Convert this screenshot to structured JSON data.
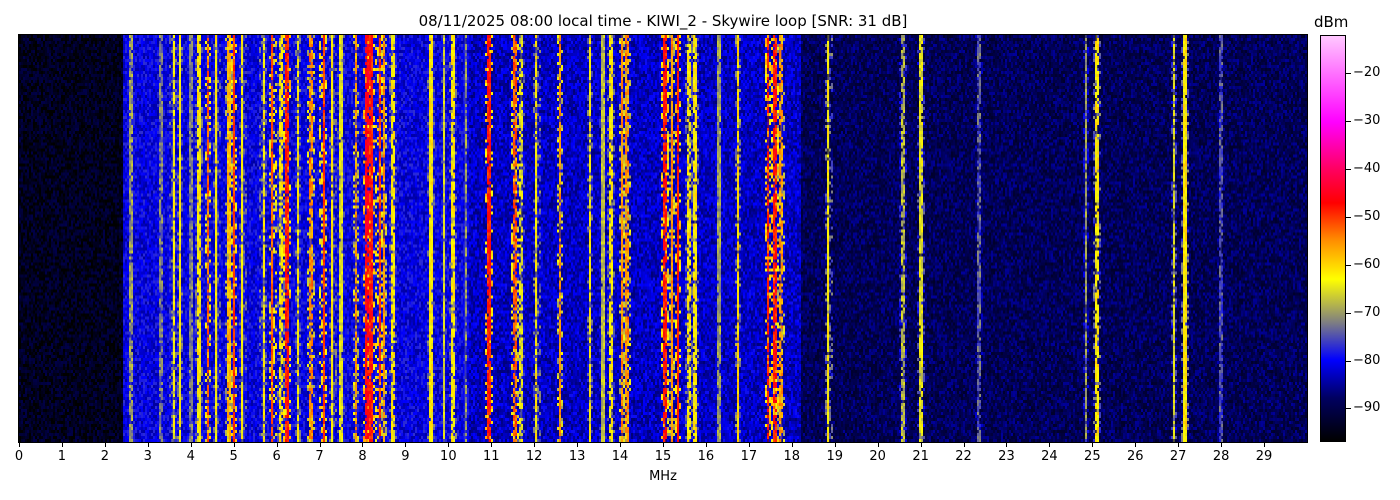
{
  "chart_data": {
    "type": "heatmap",
    "title": "08/11/2025 08:00 local time - KIWI_2 - Skywire loop [SNR: 31 dB]",
    "xlabel": "MHz",
    "xlim": [
      0,
      30
    ],
    "xticks": [
      0,
      1,
      2,
      3,
      4,
      5,
      6,
      7,
      8,
      9,
      10,
      11,
      12,
      13,
      14,
      15,
      16,
      17,
      18,
      19,
      20,
      21,
      22,
      23,
      24,
      25,
      26,
      27,
      28,
      29
    ],
    "colorbar": {
      "label": "dBm",
      "range": [
        -97,
        -12
      ],
      "ticks": [
        -20,
        -30,
        -40,
        -50,
        -60,
        -70,
        -80,
        -90
      ],
      "colormap": [
        {
          "v": -97,
          "color": "#000000"
        },
        {
          "v": -88,
          "color": "#000060"
        },
        {
          "v": -80,
          "color": "#0000ff"
        },
        {
          "v": -72,
          "color": "#808080"
        },
        {
          "v": -63,
          "color": "#ffff00"
        },
        {
          "v": -55,
          "color": "#ff9000"
        },
        {
          "v": -47,
          "color": "#ff0000"
        },
        {
          "v": -40,
          "color": "#ff0060"
        },
        {
          "v": -30,
          "color": "#ff00ff"
        },
        {
          "v": -12,
          "color": "#ffc8ff"
        }
      ]
    },
    "noise_floor": [
      {
        "from_mhz": 0,
        "to_mhz": 2.4,
        "dbm": -94
      },
      {
        "from_mhz": 2.4,
        "to_mhz": 10.5,
        "dbm": -81
      },
      {
        "from_mhz": 10.5,
        "to_mhz": 18.2,
        "dbm": -83
      },
      {
        "from_mhz": 18.2,
        "to_mhz": 30,
        "dbm": -89
      }
    ],
    "signals": [
      {
        "mhz": 2.6,
        "dbm": -70
      },
      {
        "mhz": 3.3,
        "dbm": -72
      },
      {
        "mhz": 3.6,
        "dbm": -63
      },
      {
        "mhz": 3.75,
        "dbm": -62
      },
      {
        "mhz": 4.0,
        "dbm": -72
      },
      {
        "mhz": 4.2,
        "dbm": -62
      },
      {
        "mhz": 4.4,
        "dbm": -52
      },
      {
        "mhz": 4.6,
        "dbm": -62
      },
      {
        "mhz": 4.9,
        "dbm": -58
      },
      {
        "mhz": 5.0,
        "dbm": -50
      },
      {
        "mhz": 5.2,
        "dbm": -63
      },
      {
        "mhz": 5.7,
        "dbm": -62
      },
      {
        "mhz": 5.9,
        "dbm": -52
      },
      {
        "mhz": 6.1,
        "dbm": -62
      },
      {
        "mhz": 6.25,
        "dbm": -48
      },
      {
        "mhz": 6.5,
        "dbm": -62
      },
      {
        "mhz": 6.8,
        "dbm": -55
      },
      {
        "mhz": 7.1,
        "dbm": -50
      },
      {
        "mhz": 7.3,
        "dbm": -62
      },
      {
        "mhz": 7.5,
        "dbm": -65
      },
      {
        "mhz": 7.85,
        "dbm": -55
      },
      {
        "mhz": 8.1,
        "dbm": -46
      },
      {
        "mhz": 8.2,
        "dbm": -48
      },
      {
        "mhz": 8.4,
        "dbm": -50
      },
      {
        "mhz": 8.5,
        "dbm": -55
      },
      {
        "mhz": 8.7,
        "dbm": -62
      },
      {
        "mhz": 9.6,
        "dbm": -62
      },
      {
        "mhz": 9.9,
        "dbm": -66
      },
      {
        "mhz": 10.1,
        "dbm": -62
      },
      {
        "mhz": 10.4,
        "dbm": -70
      },
      {
        "mhz": 10.95,
        "dbm": -48
      },
      {
        "mhz": 11.55,
        "dbm": -52
      },
      {
        "mhz": 11.7,
        "dbm": -65
      },
      {
        "mhz": 12.05,
        "dbm": -62
      },
      {
        "mhz": 12.6,
        "dbm": -55
      },
      {
        "mhz": 13.3,
        "dbm": -62
      },
      {
        "mhz": 13.6,
        "dbm": -68
      },
      {
        "mhz": 13.8,
        "dbm": -62
      },
      {
        "mhz": 14.05,
        "dbm": -55
      },
      {
        "mhz": 14.15,
        "dbm": -55
      },
      {
        "mhz": 15.05,
        "dbm": -48
      },
      {
        "mhz": 15.2,
        "dbm": -55
      },
      {
        "mhz": 15.35,
        "dbm": -48
      },
      {
        "mhz": 15.6,
        "dbm": -62
      },
      {
        "mhz": 15.75,
        "dbm": -62
      },
      {
        "mhz": 16.3,
        "dbm": -70
      },
      {
        "mhz": 16.75,
        "dbm": -60
      },
      {
        "mhz": 17.45,
        "dbm": -48
      },
      {
        "mhz": 17.6,
        "dbm": -48
      },
      {
        "mhz": 17.75,
        "dbm": -56
      },
      {
        "mhz": 18.85,
        "dbm": -62
      },
      {
        "mhz": 20.6,
        "dbm": -68
      },
      {
        "mhz": 21.0,
        "dbm": -65
      },
      {
        "mhz": 22.35,
        "dbm": -74
      },
      {
        "mhz": 24.85,
        "dbm": -70
      },
      {
        "mhz": 25.1,
        "dbm": -62
      },
      {
        "mhz": 26.9,
        "dbm": -65
      },
      {
        "mhz": 27.15,
        "dbm": -62
      },
      {
        "mhz": 28.0,
        "dbm": -75
      }
    ]
  }
}
